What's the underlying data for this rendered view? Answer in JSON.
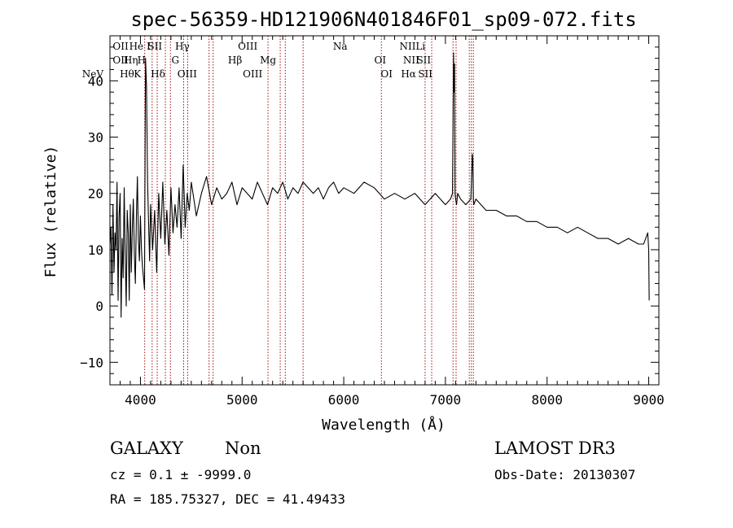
{
  "chart_data": {
    "type": "line",
    "title": "spec-56359-HD121906N401846F01_sp09-072.fits",
    "xlabel": "Wavelength (Å)",
    "ylabel": "Flux (relative)",
    "xlim": [
      3700,
      9100
    ],
    "ylim": [
      -14,
      48
    ],
    "xticks": [
      4000,
      5000,
      6000,
      7000,
      8000,
      9000
    ],
    "yticks": [
      -10,
      0,
      10,
      20,
      30,
      40
    ],
    "x_minor_step": 100,
    "y_minor_step": 2,
    "grid": false,
    "series": [
      {
        "name": "flux",
        "x": [
          3700,
          3710,
          3720,
          3730,
          3740,
          3750,
          3760,
          3770,
          3780,
          3790,
          3800,
          3810,
          3820,
          3830,
          3840,
          3850,
          3860,
          3870,
          3880,
          3890,
          3900,
          3910,
          3920,
          3930,
          3940,
          3950,
          3960,
          3970,
          3980,
          3990,
          4000,
          4010,
          4020,
          4030,
          4040,
          4050,
          4060,
          4070,
          4080,
          4090,
          4100,
          4120,
          4140,
          4160,
          4180,
          4200,
          4220,
          4240,
          4260,
          4280,
          4300,
          4320,
          4340,
          4360,
          4380,
          4400,
          4420,
          4440,
          4460,
          4480,
          4500,
          4550,
          4600,
          4650,
          4700,
          4750,
          4800,
          4850,
          4900,
          4950,
          5000,
          5050,
          5100,
          5150,
          5200,
          5250,
          5300,
          5350,
          5400,
          5450,
          5500,
          5550,
          5600,
          5650,
          5700,
          5750,
          5800,
          5850,
          5900,
          5950,
          6000,
          6100,
          6200,
          6300,
          6400,
          6500,
          6600,
          6700,
          6800,
          6900,
          7000,
          7050,
          7070,
          7080,
          7085,
          7090,
          7095,
          7100,
          7110,
          7120,
          7150,
          7200,
          7250,
          7260,
          7265,
          7270,
          7275,
          7280,
          7300,
          7350,
          7400,
          7500,
          7600,
          7700,
          7800,
          7900,
          8000,
          8100,
          8200,
          8300,
          8400,
          8500,
          8600,
          8700,
          8800,
          8900,
          8950,
          8990,
          9000,
          9005
        ],
        "values": [
          11,
          14,
          2,
          18,
          6,
          13,
          10,
          22,
          1,
          16,
          20,
          -2,
          12,
          5,
          21,
          9,
          0,
          17,
          13,
          1,
          18,
          6,
          14,
          19,
          9,
          4,
          16,
          23,
          12,
          8,
          16,
          10,
          7,
          5,
          3,
          44,
          39,
          22,
          15,
          8,
          18,
          10,
          17,
          6,
          20,
          12,
          22,
          11,
          17,
          9,
          21,
          13,
          18,
          14,
          21,
          12,
          25,
          14,
          20,
          17,
          22,
          16,
          20,
          23,
          18,
          21,
          19,
          20,
          22,
          18,
          21,
          20,
          19,
          22,
          20,
          18,
          21,
          20,
          22,
          19,
          21,
          20,
          22,
          21,
          20,
          21,
          19,
          21,
          22,
          20,
          21,
          20,
          22,
          21,
          19,
          20,
          19,
          20,
          18,
          20,
          18,
          19,
          20,
          45,
          38,
          43,
          20,
          19,
          18,
          20,
          19,
          18,
          19,
          24,
          27,
          26,
          19,
          18,
          19,
          18,
          17,
          17,
          16,
          16,
          15,
          15,
          14,
          14,
          13,
          14,
          13,
          12,
          12,
          11,
          12,
          11,
          11,
          13,
          10,
          1
        ]
      }
    ],
    "line_markers": [
      {
        "name": "NeV",
        "x": 3426,
        "row": 3
      },
      {
        "name": "OII",
        "x": 3727,
        "row": 1
      },
      {
        "name": "OII",
        "x": 3727,
        "row": 2
      },
      {
        "name": "Hθ",
        "x": 3797,
        "row": 3
      },
      {
        "name": "Hη",
        "x": 3835,
        "row": 2
      },
      {
        "name": "He I",
        "x": 3889,
        "row": 1
      },
      {
        "name": "K",
        "x": 3934,
        "row": 3
      },
      {
        "name": "H",
        "x": 3969,
        "row": 2
      },
      {
        "name": "SII",
        "x": 4072,
        "row": 1
      },
      {
        "name": "Hδ",
        "x": 4102,
        "row": 3
      },
      {
        "name": "Hγ",
        "x": 4341,
        "row": 1
      },
      {
        "name": "G",
        "x": 4305,
        "row": 2
      },
      {
        "name": "OIII",
        "x": 4363,
        "row": 3
      },
      {
        "name": "Hβ",
        "x": 4861,
        "row": 2
      },
      {
        "name": "OIII",
        "x": 4959,
        "row": 1
      },
      {
        "name": "OIII",
        "x": 5007,
        "row": 3
      },
      {
        "name": "Mg",
        "x": 5175,
        "row": 2
      },
      {
        "name": "Na",
        "x": 5894,
        "row": 1
      },
      {
        "name": "OI",
        "x": 6300,
        "row": 2
      },
      {
        "name": "OI",
        "x": 6363,
        "row": 3
      },
      {
        "name": "NII",
        "x": 6548,
        "row": 1
      },
      {
        "name": "NII",
        "x": 6583,
        "row": 2
      },
      {
        "name": "Hα",
        "x": 6563,
        "row": 3
      },
      {
        "name": "Li",
        "x": 6707,
        "row": 1
      },
      {
        "name": "SII",
        "x": 6716,
        "row": 2
      },
      {
        "name": "SII",
        "x": 6731,
        "row": 3
      }
    ],
    "marker_lines_x": [
      4042,
      4115,
      4165,
      4245,
      4295,
      4425,
      4465,
      4675,
      4715,
      5255,
      5375,
      5425,
      5600,
      6370,
      6800,
      6865,
      7075,
      7105,
      7235,
      7255,
      7275
    ]
  },
  "info": {
    "class": "GALAXY",
    "subclass": "Non",
    "survey": "LAMOST DR3",
    "cz": "cz = 0.1 ± -9999.0",
    "obs_date": "Obs-Date: 20130307",
    "coords": "RA = 185.75327, DEC =  41.49433"
  },
  "colors": {
    "spectrum": "#000000",
    "marker_line": "#a01010",
    "axis": "#000000"
  }
}
